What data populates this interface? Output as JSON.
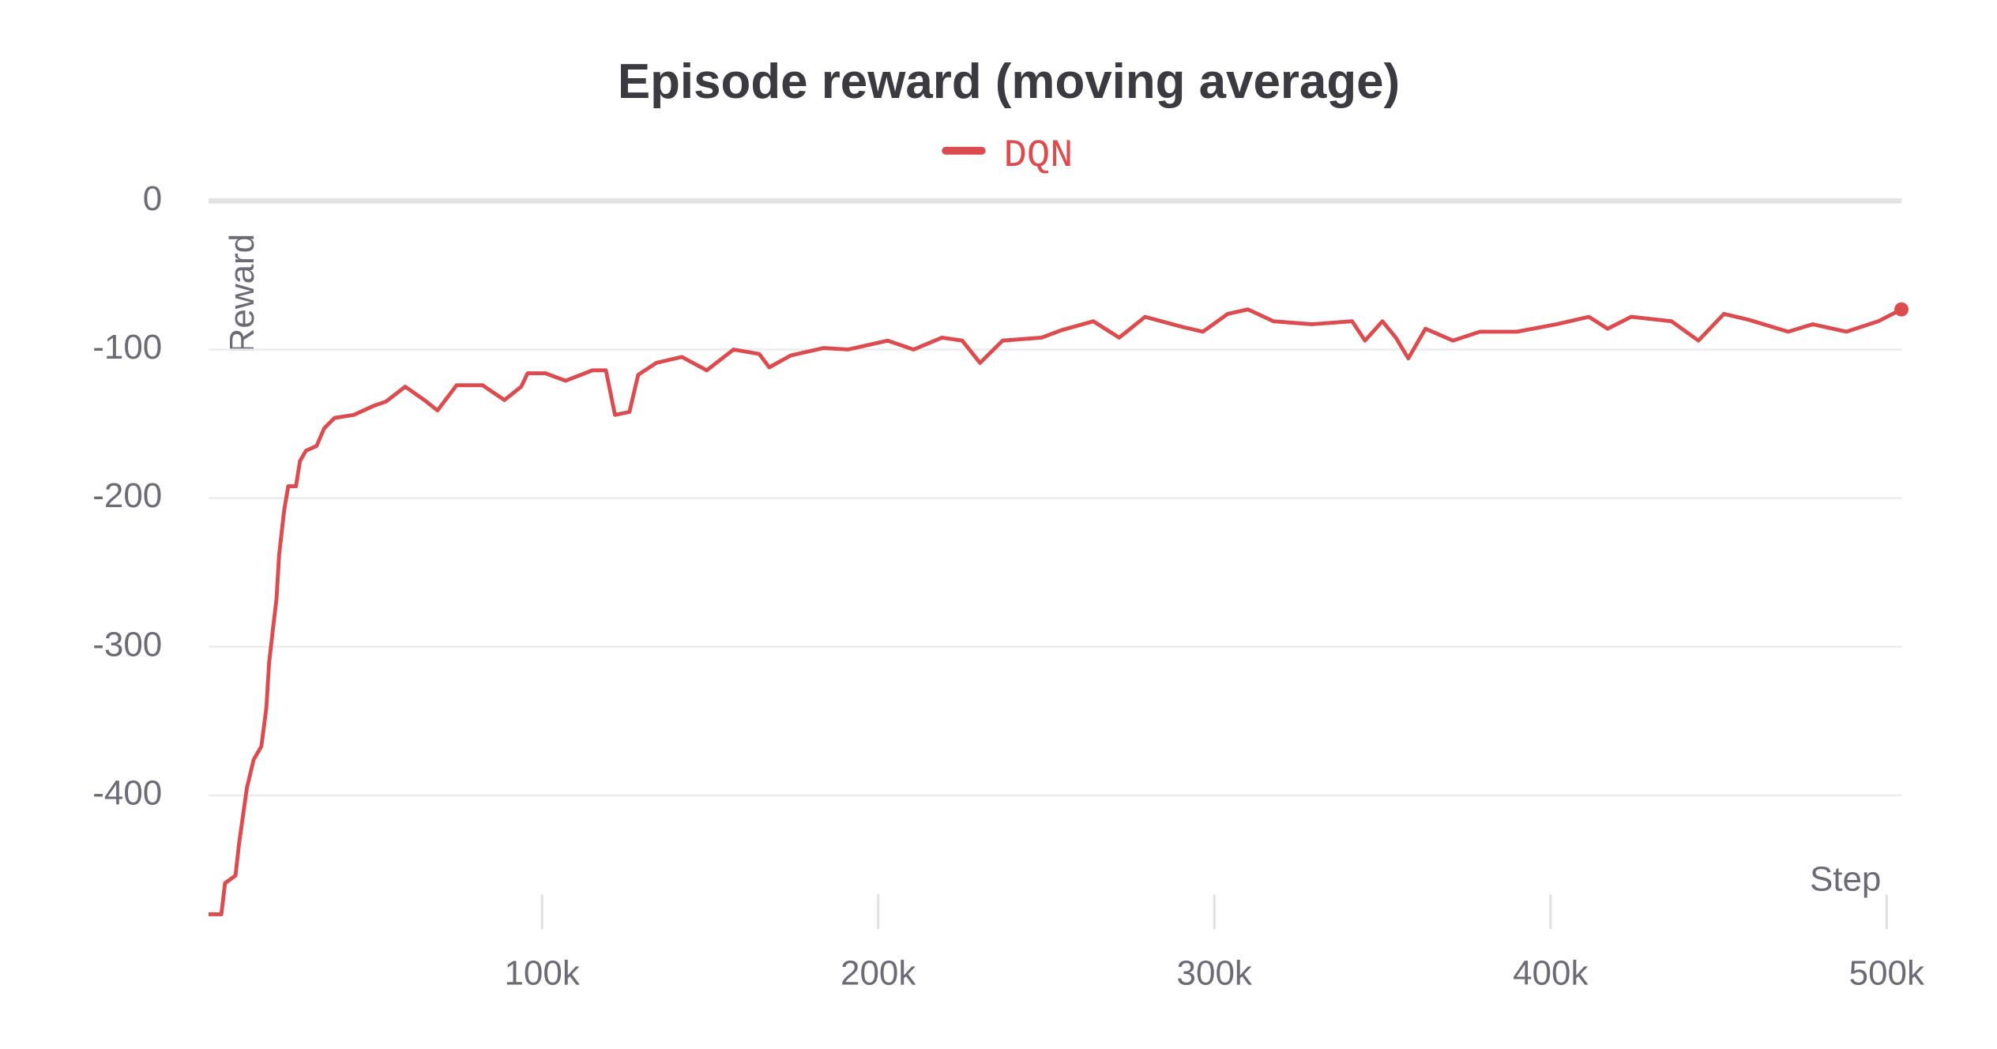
{
  "chart_data": {
    "type": "line",
    "title": "Episode reward (moving average)",
    "ylabel": "Reward",
    "xlabel": "Step",
    "xlim": [
      0,
      504500
    ],
    "ylim": [
      -490,
      0
    ],
    "xticks": [
      {
        "value": 100000,
        "label": "100k"
      },
      {
        "value": 200000,
        "label": "200k"
      },
      {
        "value": 300000,
        "label": "300k"
      },
      {
        "value": 400000,
        "label": "400k"
      },
      {
        "value": 500000,
        "label": "500k"
      }
    ],
    "yticks": [
      0,
      -100,
      -200,
      -300,
      -400
    ],
    "grid": true,
    "legend": "top",
    "series": [
      {
        "name": "DQN",
        "color": "#dc4b4e",
        "x": [
          800,
          4600,
          5700,
          8800,
          9900,
          12200,
          14200,
          16500,
          18000,
          18800,
          19900,
          21000,
          21800,
          23300,
          24500,
          26800,
          28000,
          29800,
          32900,
          35200,
          38300,
          44000,
          49800,
          53600,
          59300,
          65000,
          68900,
          74600,
          82300,
          88800,
          93800,
          95700,
          101000,
          107000,
          115000,
          119000,
          121700,
          126000,
          128600,
          134000,
          141600,
          149000,
          157000,
          164600,
          167600,
          174000,
          183700,
          191000,
          202800,
          210500,
          219000,
          225000,
          230300,
          237000,
          248600,
          254500,
          264000,
          271700,
          279400,
          290800,
          296600,
          304000,
          310000,
          317600,
          329000,
          341000,
          344800,
          350000,
          354000,
          357700,
          362800,
          371000,
          379000,
          390000,
          401800,
          411400,
          417000,
          424000,
          436000,
          444000,
          451600,
          459000,
          470700,
          478000,
          488000,
          497500,
          504400
        ],
        "values": [
          -480,
          -480,
          -459,
          -454,
          -432,
          -395,
          -376,
          -367,
          -341,
          -311,
          -289,
          -268,
          -238,
          -208,
          -192,
          -192,
          -175,
          -168,
          -165,
          -153,
          -146,
          -144,
          -138,
          -135,
          -125,
          -134,
          -141,
          -124,
          -124,
          -134,
          -125,
          -116,
          -116,
          -121,
          -114,
          -114,
          -144,
          -142,
          -117,
          -109,
          -105,
          -114,
          -100,
          -103,
          -112,
          -104,
          -99,
          -100,
          -94,
          -100,
          -92,
          -94,
          -109,
          -94,
          -92,
          -87,
          -81,
          -92,
          -78,
          -85,
          -88,
          -76,
          -73,
          -81,
          -83,
          -81,
          -94,
          -81,
          -92,
          -106,
          -86,
          -94,
          -88,
          -88,
          -83,
          -78,
          -86,
          -78,
          -81,
          -94,
          -76,
          -80,
          -88,
          -83,
          -88,
          -81,
          -73
        ]
      }
    ]
  }
}
